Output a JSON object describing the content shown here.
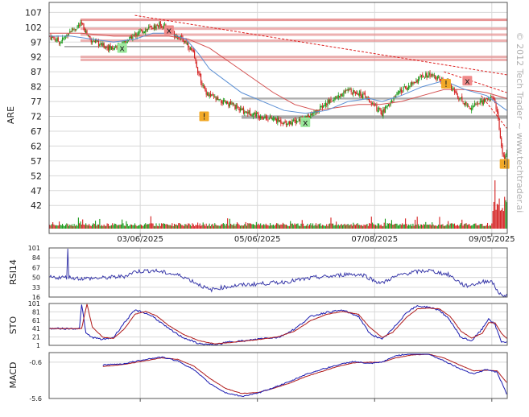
{
  "chart_data": [
    {
      "type": "candlestick",
      "panel": "price",
      "ylabel": "ARE",
      "yticks": [
        107,
        102,
        97,
        92,
        87,
        82,
        77,
        72,
        67,
        62,
        57,
        52,
        47,
        42
      ],
      "ylim": [
        38,
        109
      ],
      "xticks": [
        "03/06/2025",
        "05/06/2025",
        "07/08/2025",
        "09/05/2025"
      ],
      "grid": true,
      "watermark": "© 2012 Tech Trader ~ www.techtrader.ai",
      "price_path": [
        [
          0,
          99
        ],
        [
          10,
          97
        ],
        [
          20,
          101
        ],
        [
          30,
          103
        ],
        [
          38,
          98
        ],
        [
          48,
          96
        ],
        [
          58,
          95
        ],
        [
          68,
          96
        ],
        [
          78,
          99
        ],
        [
          88,
          101
        ],
        [
          97,
          102
        ],
        [
          104,
          103
        ],
        [
          112,
          101
        ],
        [
          120,
          99
        ],
        [
          128,
          97
        ],
        [
          135,
          93
        ],
        [
          140,
          86
        ],
        [
          145,
          81
        ],
        [
          150,
          79
        ],
        [
          160,
          77
        ],
        [
          170,
          76
        ],
        [
          180,
          74
        ],
        [
          190,
          73
        ],
        [
          200,
          72
        ],
        [
          210,
          71
        ],
        [
          220,
          70
        ],
        [
          228,
          70
        ],
        [
          236,
          71
        ],
        [
          244,
          72
        ],
        [
          252,
          74
        ],
        [
          262,
          77
        ],
        [
          272,
          79
        ],
        [
          282,
          81
        ],
        [
          290,
          80
        ],
        [
          298,
          78
        ],
        [
          306,
          75
        ],
        [
          312,
          73
        ],
        [
          318,
          76
        ],
        [
          325,
          79
        ],
        [
          332,
          81
        ],
        [
          340,
          83
        ],
        [
          348,
          85
        ],
        [
          356,
          86
        ],
        [
          362,
          85
        ],
        [
          368,
          84
        ],
        [
          374,
          83
        ],
        [
          378,
          81
        ],
        [
          383,
          79
        ],
        [
          388,
          77
        ],
        [
          394,
          75
        ],
        [
          400,
          76
        ],
        [
          406,
          77
        ],
        [
          412,
          78
        ],
        [
          417,
          78
        ],
        [
          421,
          72
        ],
        [
          423,
          64
        ],
        [
          425,
          60
        ],
        [
          427,
          57
        ],
        [
          429,
          59
        ]
      ],
      "sma_fast_path": [
        [
          0,
          99
        ],
        [
          20,
          99
        ],
        [
          40,
          98
        ],
        [
          60,
          97
        ],
        [
          80,
          98
        ],
        [
          97,
          100
        ],
        [
          112,
          100
        ],
        [
          128,
          98
        ],
        [
          140,
          93
        ],
        [
          150,
          88
        ],
        [
          165,
          84
        ],
        [
          180,
          80
        ],
        [
          200,
          77
        ],
        [
          220,
          74
        ],
        [
          240,
          73
        ],
        [
          260,
          74
        ],
        [
          280,
          77
        ],
        [
          300,
          78
        ],
        [
          312,
          77
        ],
        [
          330,
          79
        ],
        [
          350,
          82
        ],
        [
          370,
          84
        ],
        [
          390,
          81
        ],
        [
          410,
          79
        ],
        [
          429,
          74
        ]
      ],
      "sma_slow_path": [
        [
          0,
          100
        ],
        [
          30,
          100
        ],
        [
          60,
          99
        ],
        [
          90,
          99
        ],
        [
          112,
          99
        ],
        [
          130,
          98
        ],
        [
          150,
          95
        ],
        [
          170,
          90
        ],
        [
          190,
          85
        ],
        [
          210,
          80
        ],
        [
          230,
          76
        ],
        [
          250,
          74
        ],
        [
          270,
          75
        ],
        [
          290,
          76
        ],
        [
          310,
          76
        ],
        [
          330,
          77
        ],
        [
          350,
          79
        ],
        [
          370,
          81
        ],
        [
          390,
          81
        ],
        [
          410,
          80
        ],
        [
          429,
          78
        ]
      ],
      "resistance_lines": [
        104.5,
        101.5,
        99.5,
        97.5,
        92,
        91
      ],
      "support_lines": [
        78,
        72,
        71.5
      ],
      "trendlines": [
        {
          "from": [
            80,
            106
          ],
          "to": [
            429,
            86
          ]
        },
        {
          "from": [
            370,
            87
          ],
          "to": [
            429,
            80
          ]
        },
        {
          "from": [
            405,
            79
          ],
          "to": [
            429,
            68
          ]
        }
      ],
      "signals": [
        {
          "label": "x",
          "kind": "buy",
          "index": 68,
          "price": 95
        },
        {
          "label": "x",
          "kind": "sell",
          "index": 112,
          "price": 101
        },
        {
          "label": "!",
          "kind": "warning",
          "index": 145,
          "price": 72
        },
        {
          "label": "x",
          "kind": "buy",
          "index": 240,
          "price": 70
        },
        {
          "label": "!",
          "kind": "warning",
          "index": 372,
          "price": 83
        },
        {
          "label": "x",
          "kind": "sell",
          "index": 392,
          "price": 84
        },
        {
          "label": "!",
          "kind": "warning",
          "index": 427,
          "price": 56
        }
      ]
    },
    {
      "type": "line",
      "panel": "rsi",
      "ylabel": "RSI14",
      "yticks": [
        101,
        84,
        67,
        50,
        33,
        16
      ],
      "ylim": [
        16,
        101
      ],
      "path": [
        [
          0,
          50
        ],
        [
          16,
          50
        ],
        [
          17,
          101
        ],
        [
          18,
          50
        ],
        [
          30,
          48
        ],
        [
          50,
          49
        ],
        [
          70,
          52
        ],
        [
          80,
          60
        ],
        [
          97,
          62
        ],
        [
          112,
          57
        ],
        [
          125,
          52
        ],
        [
          140,
          38
        ],
        [
          150,
          28
        ],
        [
          160,
          32
        ],
        [
          175,
          36
        ],
        [
          190,
          38
        ],
        [
          205,
          40
        ],
        [
          220,
          42
        ],
        [
          235,
          46
        ],
        [
          250,
          50
        ],
        [
          265,
          52
        ],
        [
          280,
          56
        ],
        [
          295,
          54
        ],
        [
          305,
          44
        ],
        [
          312,
          40
        ],
        [
          320,
          48
        ],
        [
          332,
          56
        ],
        [
          345,
          60
        ],
        [
          356,
          62
        ],
        [
          366,
          58
        ],
        [
          374,
          55
        ],
        [
          382,
          45
        ],
        [
          390,
          35
        ],
        [
          398,
          38
        ],
        [
          406,
          42
        ],
        [
          414,
          45
        ],
        [
          420,
          28
        ],
        [
          424,
          18
        ],
        [
          429,
          20
        ]
      ]
    },
    {
      "type": "line",
      "panel": "stochastic",
      "ylabel": "STO",
      "yticks": [
        101,
        81,
        61,
        41,
        21,
        1
      ],
      "ylim": [
        1,
        101
      ],
      "series_k": [
        [
          0,
          41
        ],
        [
          28,
          41
        ],
        [
          30,
          100
        ],
        [
          34,
          30
        ],
        [
          40,
          20
        ],
        [
          50,
          15
        ],
        [
          60,
          20
        ],
        [
          70,
          55
        ],
        [
          80,
          85
        ],
        [
          88,
          80
        ],
        [
          97,
          70
        ],
        [
          112,
          40
        ],
        [
          125,
          20
        ],
        [
          140,
          5
        ],
        [
          155,
          2
        ],
        [
          170,
          10
        ],
        [
          185,
          12
        ],
        [
          200,
          18
        ],
        [
          215,
          20
        ],
        [
          230,
          40
        ],
        [
          245,
          70
        ],
        [
          260,
          80
        ],
        [
          275,
          85
        ],
        [
          290,
          70
        ],
        [
          300,
          30
        ],
        [
          312,
          15
        ],
        [
          322,
          40
        ],
        [
          335,
          80
        ],
        [
          345,
          95
        ],
        [
          356,
          92
        ],
        [
          366,
          85
        ],
        [
          376,
          60
        ],
        [
          386,
          20
        ],
        [
          396,
          12
        ],
        [
          406,
          40
        ],
        [
          412,
          65
        ],
        [
          418,
          50
        ],
        [
          424,
          10
        ],
        [
          429,
          8
        ]
      ],
      "series_d": [
        [
          0,
          41
        ],
        [
          30,
          41
        ],
        [
          35,
          100
        ],
        [
          40,
          45
        ],
        [
          50,
          20
        ],
        [
          60,
          18
        ],
        [
          70,
          40
        ],
        [
          80,
          75
        ],
        [
          90,
          82
        ],
        [
          100,
          72
        ],
        [
          112,
          48
        ],
        [
          125,
          28
        ],
        [
          140,
          12
        ],
        [
          155,
          5
        ],
        [
          170,
          8
        ],
        [
          185,
          12
        ],
        [
          200,
          16
        ],
        [
          215,
          22
        ],
        [
          230,
          35
        ],
        [
          245,
          60
        ],
        [
          260,
          75
        ],
        [
          275,
          82
        ],
        [
          290,
          75
        ],
        [
          300,
          45
        ],
        [
          312,
          20
        ],
        [
          322,
          32
        ],
        [
          335,
          68
        ],
        [
          345,
          88
        ],
        [
          356,
          90
        ],
        [
          366,
          88
        ],
        [
          376,
          70
        ],
        [
          386,
          35
        ],
        [
          396,
          18
        ],
        [
          406,
          30
        ],
        [
          412,
          55
        ],
        [
          418,
          55
        ],
        [
          424,
          30
        ],
        [
          429,
          18
        ]
      ]
    },
    {
      "type": "line",
      "panel": "macd",
      "ylabel": "MACD",
      "yticks": [
        -0.6,
        -5.6
      ],
      "ylim": [
        -5.6,
        0.5
      ],
      "series_macd": [
        [
          50,
          -1.0
        ],
        [
          70,
          -0.8
        ],
        [
          90,
          -0.2
        ],
        [
          105,
          0.1
        ],
        [
          120,
          -0.4
        ],
        [
          135,
          -1.6
        ],
        [
          150,
          -3.5
        ],
        [
          165,
          -4.8
        ],
        [
          180,
          -5.3
        ],
        [
          195,
          -4.9
        ],
        [
          210,
          -4.1
        ],
        [
          225,
          -3.3
        ],
        [
          240,
          -2.3
        ],
        [
          255,
          -1.6
        ],
        [
          270,
          -1.0
        ],
        [
          285,
          -0.5
        ],
        [
          300,
          -0.8
        ],
        [
          312,
          -0.6
        ],
        [
          325,
          0.3
        ],
        [
          340,
          0.6
        ],
        [
          356,
          0.5
        ],
        [
          370,
          -0.4
        ],
        [
          385,
          -1.5
        ],
        [
          398,
          -2.2
        ],
        [
          410,
          -1.6
        ],
        [
          420,
          -2.0
        ],
        [
          429,
          -5.0
        ]
      ],
      "series_signal": [
        [
          50,
          -1.2
        ],
        [
          70,
          -0.9
        ],
        [
          90,
          -0.4
        ],
        [
          105,
          0.0
        ],
        [
          120,
          -0.2
        ],
        [
          135,
          -1.1
        ],
        [
          150,
          -2.8
        ],
        [
          165,
          -4.2
        ],
        [
          180,
          -4.9
        ],
        [
          195,
          -4.8
        ],
        [
          210,
          -4.2
        ],
        [
          225,
          -3.5
        ],
        [
          240,
          -2.6
        ],
        [
          255,
          -1.9
        ],
        [
          270,
          -1.2
        ],
        [
          285,
          -0.7
        ],
        [
          300,
          -0.6
        ],
        [
          312,
          -0.6
        ],
        [
          325,
          0.0
        ],
        [
          340,
          0.4
        ],
        [
          356,
          0.5
        ],
        [
          370,
          0.0
        ],
        [
          385,
          -1.0
        ],
        [
          398,
          -1.8
        ],
        [
          410,
          -1.7
        ],
        [
          420,
          -1.8
        ],
        [
          429,
          -3.4
        ]
      ]
    }
  ],
  "colors": {
    "up": "#1a9a1a",
    "down": "#d42020",
    "sma_fast": "#5b8fd4",
    "sma_slow": "#d45050",
    "rsi": "#3a3aaa",
    "sto_k": "#1a1ab0",
    "sto_d": "#b01a1a",
    "resistance": "#e69090",
    "support": "#a0a0a0",
    "trend": "#dd2020",
    "grid": "#d8d8d8",
    "buy": "#9be89b",
    "sell": "#f08a8a",
    "warning": "#f2a928"
  }
}
